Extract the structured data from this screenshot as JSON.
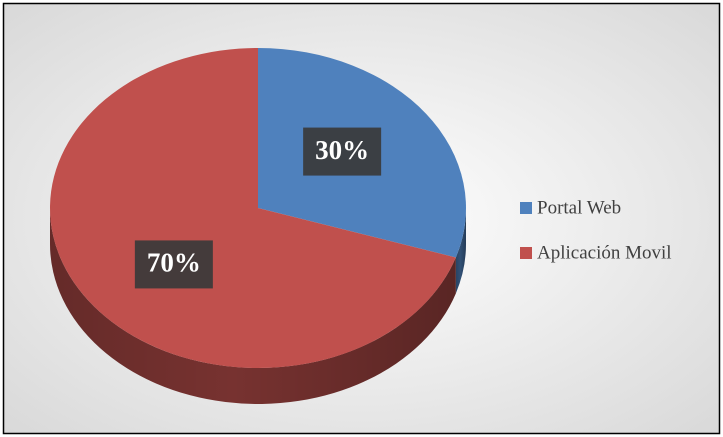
{
  "chart_data": {
    "type": "pie",
    "categories": [
      "Portal Web",
      "Aplicación Movil"
    ],
    "values": [
      30,
      70
    ],
    "value_labels": [
      "30%",
      "70%"
    ],
    "colors": [
      "#4f81bd",
      "#c0504d"
    ],
    "legend": "right"
  }
}
